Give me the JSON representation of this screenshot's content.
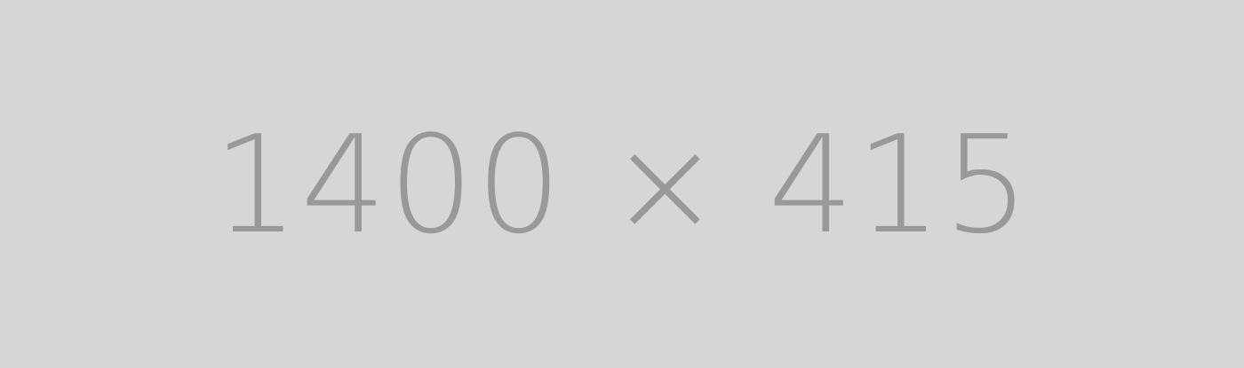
{
  "placeholder": {
    "label": "1400 × 415",
    "background_color": "#d6d6d6",
    "text_color": "#999999"
  }
}
